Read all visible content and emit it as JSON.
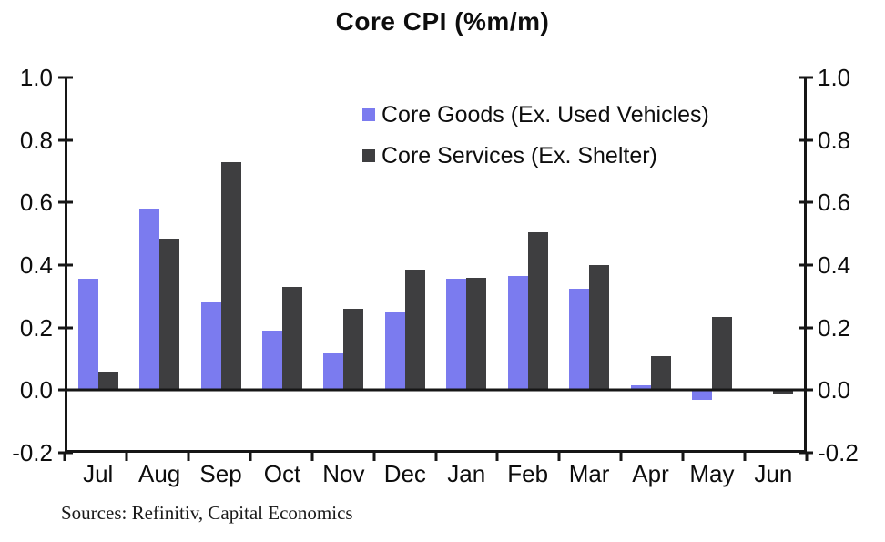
{
  "chart_data": {
    "type": "bar",
    "title": "Core CPI (%m/m)",
    "source_note": "Sources: Refinitiv, Capital Economics",
    "categories": [
      "Jul",
      "Aug",
      "Sep",
      "Oct",
      "Nov",
      "Dec",
      "Jan",
      "Feb",
      "Mar",
      "Apr",
      "May",
      "Jun"
    ],
    "series": [
      {
        "name": "Core Goods (Ex. Used Vehicles)",
        "color": "#7b7bef",
        "values": [
          0.355,
          0.58,
          0.28,
          0.19,
          0.12,
          0.25,
          0.355,
          0.365,
          0.325,
          0.015,
          -0.03,
          0
        ]
      },
      {
        "name": "Core Services (Ex. Shelter)",
        "color": "#3e3e40",
        "values": [
          0.06,
          0.485,
          0.73,
          0.33,
          0.26,
          0.385,
          0.36,
          0.505,
          0.4,
          0.11,
          0.235,
          -0.01
        ]
      }
    ],
    "ylim": [
      -0.2,
      1.0
    ],
    "y_ticks": [
      "1.0",
      "0.8",
      "0.6",
      "0.4",
      "0.2",
      "0.0",
      "-0.2"
    ],
    "y_axis_sides": "both",
    "grid": false,
    "legend_position": "inside-top-center",
    "axis_color": "#161616",
    "background": "#ffffff"
  }
}
